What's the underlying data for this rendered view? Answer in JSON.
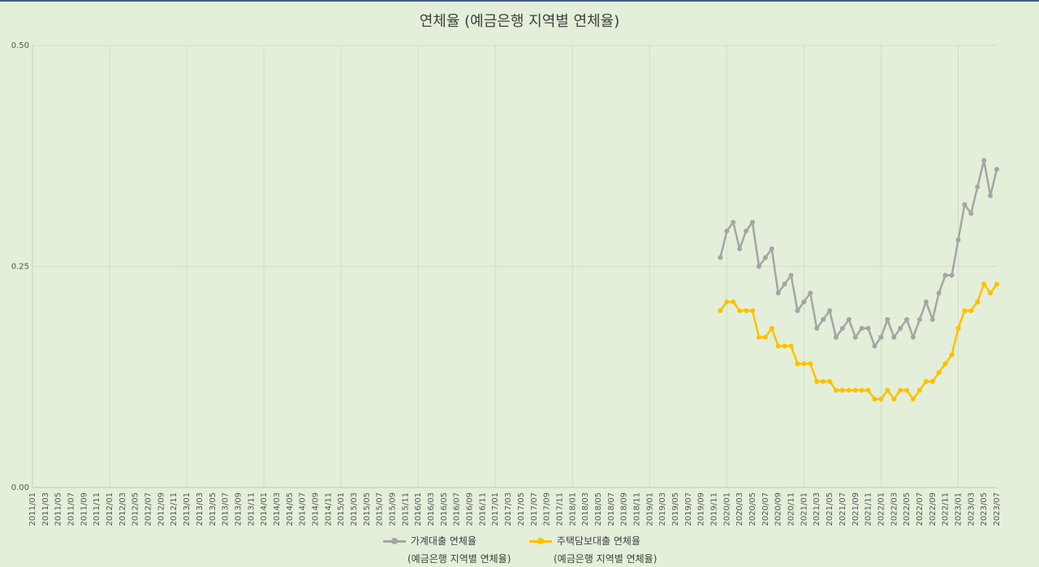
{
  "chart_data": {
    "type": "line",
    "title": "연체율 (예금은행 지역별 연체율)",
    "ylim": [
      0,
      0.5
    ],
    "y_ticks": [
      "0.00",
      "0.25",
      "0.50"
    ],
    "grid": true,
    "legend_position": "bottom",
    "x_labels": [
      "2011/01",
      "2011/03",
      "2011/05",
      "2011/07",
      "2011/09",
      "2011/11",
      "2012/01",
      "2012/03",
      "2012/05",
      "2012/07",
      "2012/09",
      "2012/11",
      "2013/01",
      "2013/03",
      "2013/05",
      "2013/07",
      "2013/09",
      "2013/11",
      "2014/01",
      "2014/03",
      "2014/05",
      "2014/07",
      "2014/09",
      "2014/11",
      "2015/01",
      "2015/03",
      "2015/05",
      "2015/07",
      "2015/09",
      "2015/11",
      "2016/01",
      "2016/03",
      "2016/05",
      "2016/07",
      "2016/09",
      "2016/11",
      "2017/01",
      "2017/03",
      "2017/05",
      "2017/07",
      "2017/09",
      "2017/11",
      "2018/01",
      "2018/03",
      "2018/05",
      "2018/07",
      "2018/09",
      "2018/11",
      "2019/01",
      "2019/03",
      "2019/05",
      "2019/07",
      "2019/09",
      "2019/11",
      "2020/01",
      "2020/03",
      "2020/05",
      "2020/07",
      "2020/09",
      "2020/11",
      "2021/01",
      "2021/03",
      "2021/05",
      "2021/07",
      "2021/09",
      "2021/11",
      "2022/01",
      "2022/03",
      "2022/05",
      "2022/07",
      "2022/09",
      "2022/11",
      "2023/01",
      "2023/03",
      "2023/05",
      "2023/07"
    ],
    "series_start": "2019/12",
    "series": [
      {
        "name": "가계대출 연체율",
        "name_sub": "(예금은행 지역별 연체율)",
        "color": "#a5a5a5",
        "values": [
          0.26,
          0.29,
          0.3,
          0.27,
          0.29,
          0.3,
          0.25,
          0.26,
          0.27,
          0.22,
          0.23,
          0.24,
          0.2,
          0.21,
          0.22,
          0.18,
          0.19,
          0.2,
          0.17,
          0.18,
          0.19,
          0.17,
          0.18,
          0.18,
          0.16,
          0.17,
          0.19,
          0.17,
          0.18,
          0.19,
          0.17,
          0.19,
          0.21,
          0.19,
          0.22,
          0.24,
          0.24,
          0.28,
          0.32,
          0.31,
          0.34,
          0.37,
          0.33,
          0.36
        ]
      },
      {
        "name": "주택담보대출 연체율",
        "name_sub": "(예금은행 지역별 연체율)",
        "color": "#ffc000",
        "values": [
          0.2,
          0.21,
          0.21,
          0.2,
          0.2,
          0.2,
          0.17,
          0.17,
          0.18,
          0.16,
          0.16,
          0.16,
          0.14,
          0.14,
          0.14,
          0.12,
          0.12,
          0.12,
          0.11,
          0.11,
          0.11,
          0.11,
          0.11,
          0.11,
          0.1,
          0.1,
          0.11,
          0.1,
          0.11,
          0.11,
          0.1,
          0.11,
          0.12,
          0.12,
          0.13,
          0.14,
          0.15,
          0.18,
          0.2,
          0.2,
          0.21,
          0.23,
          0.22,
          0.23
        ]
      }
    ]
  }
}
